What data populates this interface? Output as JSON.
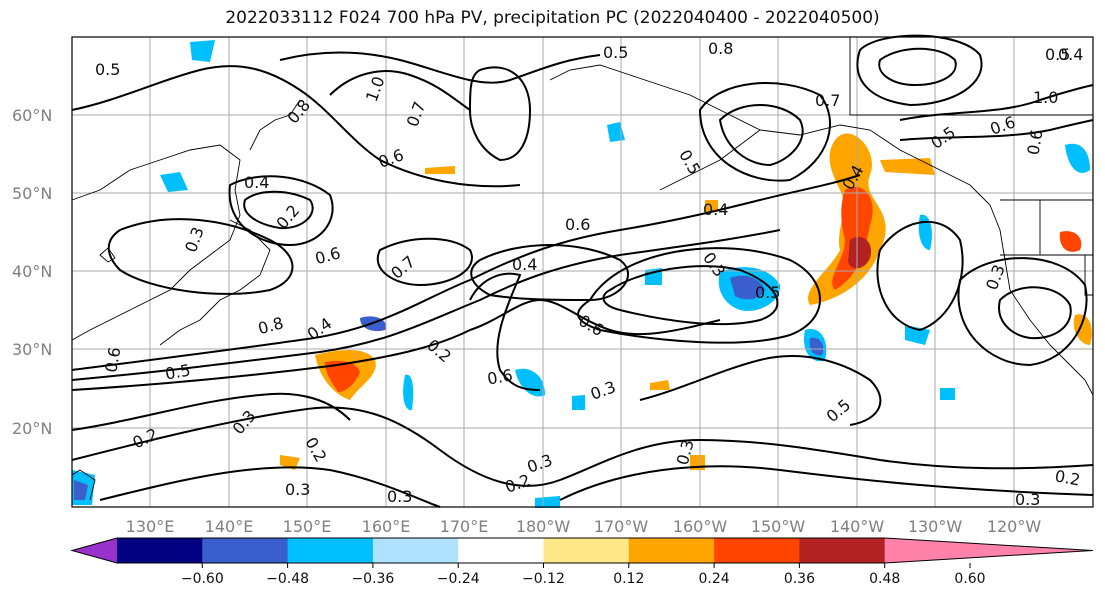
{
  "title": "2022033112 F024 700 hPa PV, precipitation PC (2022040400 - 2022040500)",
  "lat_labels": [
    "60°N",
    "50°N",
    "40°N",
    "30°N",
    "20°N"
  ],
  "lon_labels": [
    "130°E",
    "140°E",
    "150°E",
    "160°E",
    "170°E",
    "180°W",
    "170°W",
    "160°W",
    "150°W",
    "140°W",
    "130°W",
    "120°W"
  ],
  "colorbar": {
    "colors": [
      "#9932cc",
      "#000080",
      "#3a5fcd",
      "#00bfff",
      "#b0e2ff",
      "#ffffff",
      "#ffe88a",
      "#ffa500",
      "#ff4500",
      "#b22222",
      "#ff82ab"
    ],
    "tick_labels": [
      "−0.60",
      "−0.48",
      "−0.36",
      "−0.24",
      "−0.12",
      "0.12",
      "0.24",
      "0.36",
      "0.48",
      "0.60"
    ]
  },
  "contour_labels": [
    "0.5",
    "1.0",
    "0.8",
    "0.7",
    "0.6",
    "0.5",
    "0.8",
    "0.7",
    "0.6",
    "0.4",
    "0.2",
    "0.3",
    "0.6",
    "0.7",
    "0.6",
    "0.4",
    "0.3",
    "0.5",
    "0.4",
    "0.5",
    "0.6",
    "0.8",
    "0.4",
    "0.5",
    "0.6",
    "0.2",
    "0.6",
    "0.3",
    "0.5",
    "0.3",
    "0.2",
    "0.3",
    "0.2",
    "0.3",
    "0.3",
    "0.2",
    "0.3",
    "0.2",
    "0.3",
    "0.5",
    "0.4",
    "0.3",
    "0.5",
    "0.6",
    "1.0",
    "0.4"
  ]
}
